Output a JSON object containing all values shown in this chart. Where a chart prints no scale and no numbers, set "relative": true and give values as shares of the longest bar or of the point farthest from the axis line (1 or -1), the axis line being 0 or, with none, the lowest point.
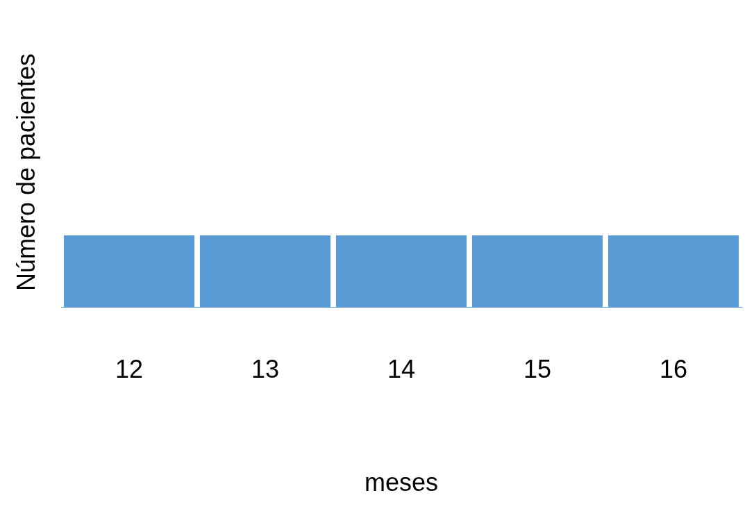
{
  "chart_data": {
    "type": "bar",
    "xlabel": "meses",
    "ylabel": "Número de pacientes",
    "categories": [
      "12",
      "13",
      "14",
      "15",
      "16"
    ],
    "values": [
      1,
      1,
      1,
      1,
      1
    ],
    "color": "#5b9bd5",
    "relative": true,
    "grid": false,
    "legend": false
  }
}
